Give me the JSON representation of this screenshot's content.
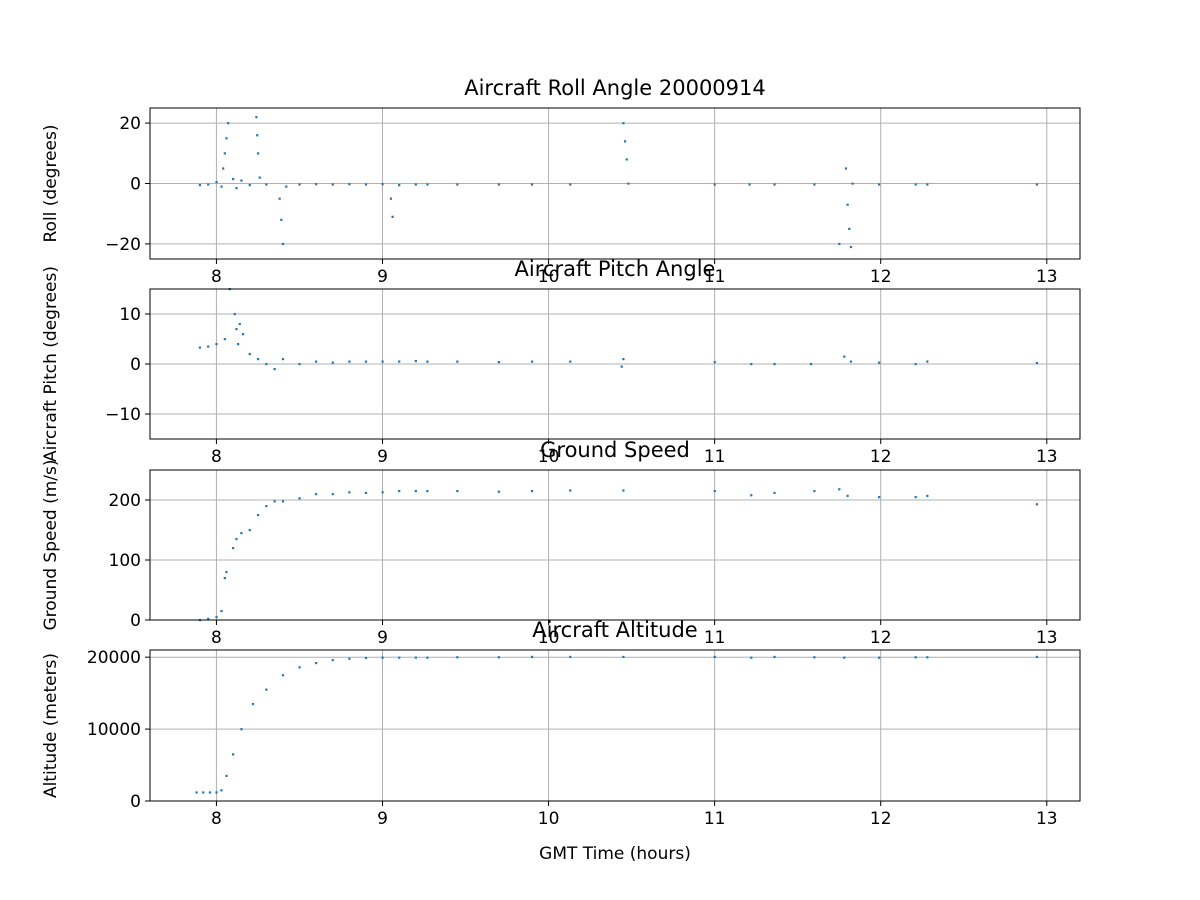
{
  "colors": {
    "series": "#1f77b4",
    "grid": "#b0b0b0",
    "axes": "#000000"
  },
  "chart_data": [
    {
      "type": "scatter",
      "title": "Aircraft Roll Angle 20000914",
      "xlabel": "",
      "ylabel": "Roll (degrees)",
      "xlim": [
        7.6,
        13.2
      ],
      "ylim": [
        -25,
        25
      ],
      "xticks": [
        8,
        9,
        10,
        11,
        12,
        13
      ],
      "xtick_labels": [
        "8",
        "9",
        "10",
        "11",
        "12",
        "13"
      ],
      "yticks": [
        -20,
        0,
        20
      ],
      "ytick_labels": [
        "−20",
        "0",
        "20"
      ],
      "grid": true,
      "series": [
        {
          "points": [
            [
              7.9,
              -0.5
            ],
            [
              7.95,
              -0.3
            ],
            [
              8.0,
              0.5
            ],
            [
              8.03,
              -1
            ],
            [
              8.04,
              5
            ],
            [
              8.05,
              10
            ],
            [
              8.06,
              15
            ],
            [
              8.07,
              20
            ],
            [
              8.1,
              1.5
            ],
            [
              8.12,
              -1.5
            ],
            [
              8.15,
              1
            ],
            [
              8.2,
              -0.5
            ],
            [
              8.24,
              22
            ],
            [
              8.245,
              16
            ],
            [
              8.25,
              10
            ],
            [
              8.26,
              2
            ],
            [
              8.3,
              -0.3
            ],
            [
              8.38,
              -5
            ],
            [
              8.39,
              -12
            ],
            [
              8.4,
              -20
            ],
            [
              8.42,
              -1
            ],
            [
              8.5,
              -0.3
            ],
            [
              8.6,
              -0.2
            ],
            [
              8.7,
              -0.3
            ],
            [
              8.8,
              -0.2
            ],
            [
              8.9,
              -0.3
            ],
            [
              9.0,
              -0.2
            ],
            [
              9.05,
              -5
            ],
            [
              9.06,
              -11
            ],
            [
              9.1,
              -0.5
            ],
            [
              9.2,
              -0.3
            ],
            [
              9.27,
              -0.3
            ],
            [
              9.45,
              -0.3
            ],
            [
              9.7,
              -0.3
            ],
            [
              9.9,
              -0.3
            ],
            [
              10.13,
              -0.3
            ],
            [
              10.45,
              20
            ],
            [
              10.46,
              14
            ],
            [
              10.47,
              8
            ],
            [
              10.48,
              0
            ],
            [
              11.0,
              -0.3
            ],
            [
              11.21,
              -0.3
            ],
            [
              11.36,
              -0.3
            ],
            [
              11.6,
              -0.3
            ],
            [
              11.75,
              -20
            ],
            [
              11.79,
              5
            ],
            [
              11.8,
              -7
            ],
            [
              11.81,
              -15
            ],
            [
              11.82,
              -21
            ],
            [
              11.83,
              0
            ],
            [
              11.99,
              -0.3
            ],
            [
              12.21,
              -0.3
            ],
            [
              12.28,
              -0.3
            ],
            [
              12.94,
              -0.3
            ]
          ]
        }
      ]
    },
    {
      "type": "scatter",
      "title": "Aircraft Pitch Angle",
      "xlabel": "",
      "ylabel": "Aircraft Pitch (degrees)",
      "xlim": [
        7.6,
        13.2
      ],
      "ylim": [
        -15,
        15
      ],
      "xticks": [
        8,
        9,
        10,
        11,
        12,
        13
      ],
      "xtick_labels": [
        "8",
        "9",
        "10",
        "11",
        "12",
        "13"
      ],
      "yticks": [
        -10,
        0,
        10
      ],
      "ytick_labels": [
        "−10",
        "0",
        "10"
      ],
      "grid": true,
      "series": [
        {
          "points": [
            [
              7.9,
              3.3
            ],
            [
              7.95,
              3.5
            ],
            [
              8.0,
              4
            ],
            [
              8.05,
              5
            ],
            [
              8.08,
              15
            ],
            [
              8.11,
              10
            ],
            [
              8.12,
              7
            ],
            [
              8.13,
              4
            ],
            [
              8.14,
              8
            ],
            [
              8.16,
              6
            ],
            [
              8.2,
              2
            ],
            [
              8.25,
              1
            ],
            [
              8.3,
              0
            ],
            [
              8.35,
              -1
            ],
            [
              8.4,
              1
            ],
            [
              8.5,
              0
            ],
            [
              8.6,
              0.5
            ],
            [
              8.7,
              0.3
            ],
            [
              8.8,
              0.5
            ],
            [
              8.9,
              0.5
            ],
            [
              9.0,
              0.5
            ],
            [
              9.1,
              0.5
            ],
            [
              9.2,
              0.6
            ],
            [
              9.27,
              0.5
            ],
            [
              9.45,
              0.5
            ],
            [
              9.7,
              0.4
            ],
            [
              9.9,
              0.5
            ],
            [
              10.13,
              0.5
            ],
            [
              10.45,
              1
            ],
            [
              10.44,
              -0.5
            ],
            [
              11.0,
              0.4
            ],
            [
              11.22,
              0
            ],
            [
              11.36,
              0
            ],
            [
              11.58,
              0
            ],
            [
              11.78,
              1.5
            ],
            [
              11.82,
              0.5
            ],
            [
              11.99,
              0.3
            ],
            [
              12.21,
              0
            ],
            [
              12.28,
              0.5
            ],
            [
              12.94,
              0.2
            ]
          ]
        }
      ]
    },
    {
      "type": "scatter",
      "title": "Ground Speed",
      "xlabel": "",
      "ylabel": "Ground Speed (m/s)",
      "xlim": [
        7.6,
        13.2
      ],
      "ylim": [
        0,
        250
      ],
      "xticks": [
        8,
        9,
        10,
        11,
        12,
        13
      ],
      "xtick_labels": [
        "8",
        "9",
        "10",
        "11",
        "12",
        "13"
      ],
      "yticks": [
        0,
        100,
        200
      ],
      "ytick_labels": [
        "0",
        "100",
        "200"
      ],
      "grid": true,
      "series": [
        {
          "points": [
            [
              7.9,
              0
            ],
            [
              7.95,
              2
            ],
            [
              8.0,
              5
            ],
            [
              8.03,
              15
            ],
            [
              8.05,
              70
            ],
            [
              8.06,
              80
            ],
            [
              8.1,
              120
            ],
            [
              8.12,
              135
            ],
            [
              8.15,
              145
            ],
            [
              8.2,
              150
            ],
            [
              8.25,
              175
            ],
            [
              8.3,
              190
            ],
            [
              8.35,
              198
            ],
            [
              8.4,
              198
            ],
            [
              8.5,
              203
            ],
            [
              8.6,
              210
            ],
            [
              8.7,
              210
            ],
            [
              8.8,
              213
            ],
            [
              8.9,
              212
            ],
            [
              9.0,
              213
            ],
            [
              9.1,
              215
            ],
            [
              9.2,
              215
            ],
            [
              9.27,
              215
            ],
            [
              9.45,
              215
            ],
            [
              9.7,
              214
            ],
            [
              9.9,
              215
            ],
            [
              10.13,
              216
            ],
            [
              10.45,
              216
            ],
            [
              11.0,
              215
            ],
            [
              11.22,
              208
            ],
            [
              11.36,
              212
            ],
            [
              11.6,
              215
            ],
            [
              11.75,
              218
            ],
            [
              11.8,
              207
            ],
            [
              11.99,
              205
            ],
            [
              12.21,
              205
            ],
            [
              12.28,
              207
            ],
            [
              12.94,
              193
            ]
          ]
        }
      ]
    },
    {
      "type": "scatter",
      "title": "Aircraft Altitude",
      "xlabel": "GMT Time (hours)",
      "ylabel": "Altitude (meters)",
      "xlim": [
        7.6,
        13.2
      ],
      "ylim": [
        0,
        21000
      ],
      "xticks": [
        8,
        9,
        10,
        11,
        12,
        13
      ],
      "xtick_labels": [
        "8",
        "9",
        "10",
        "11",
        "12",
        "13"
      ],
      "yticks": [
        0,
        10000,
        20000
      ],
      "ytick_labels": [
        "0",
        "10000",
        "20000"
      ],
      "grid": true,
      "series": [
        {
          "points": [
            [
              7.88,
              1200
            ],
            [
              7.92,
              1200
            ],
            [
              7.96,
              1200
            ],
            [
              8.0,
              1200
            ],
            [
              8.03,
              1500
            ],
            [
              8.06,
              3500
            ],
            [
              8.1,
              6500
            ],
            [
              8.15,
              10000
            ],
            [
              8.22,
              13500
            ],
            [
              8.3,
              15500
            ],
            [
              8.4,
              17500
            ],
            [
              8.5,
              18600
            ],
            [
              8.6,
              19200
            ],
            [
              8.7,
              19600
            ],
            [
              8.8,
              19800
            ],
            [
              8.9,
              19900
            ],
            [
              9.0,
              19950
            ],
            [
              9.1,
              19950
            ],
            [
              9.2,
              19950
            ],
            [
              9.27,
              19950
            ],
            [
              9.45,
              20000
            ],
            [
              9.7,
              20000
            ],
            [
              9.9,
              20050
            ],
            [
              10.13,
              20050
            ],
            [
              10.45,
              20050
            ],
            [
              11.0,
              20050
            ],
            [
              11.22,
              19950
            ],
            [
              11.36,
              20050
            ],
            [
              11.6,
              20000
            ],
            [
              11.78,
              19950
            ],
            [
              11.99,
              19950
            ],
            [
              12.21,
              20000
            ],
            [
              12.28,
              20000
            ],
            [
              12.94,
              20050
            ]
          ]
        }
      ]
    }
  ]
}
